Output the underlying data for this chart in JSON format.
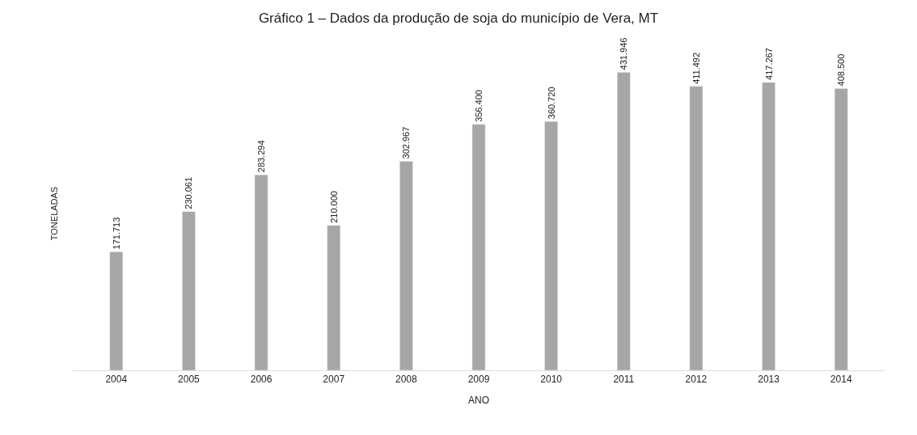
{
  "chart_data": {
    "type": "bar",
    "title": "Gráfico 1 – Dados da produção de soja do município de Vera, MT",
    "xlabel": "ANO",
    "ylabel": "TONELADAS",
    "categories": [
      "2004",
      "2005",
      "2006",
      "2007",
      "2008",
      "2009",
      "2010",
      "2011",
      "2012",
      "2013",
      "2014"
    ],
    "values": [
      171713,
      230061,
      283294,
      210000,
      302967,
      356400,
      360720,
      431946,
      411492,
      417267,
      408500
    ],
    "value_labels": [
      "171.713",
      "230.061",
      "283.294",
      "210.000",
      "302.967",
      "356.400",
      "360.720",
      "431.946",
      "411.492",
      "417.267",
      "408.500"
    ],
    "color": "#a6a6a6",
    "legend": false,
    "tick_labels": "x"
  }
}
